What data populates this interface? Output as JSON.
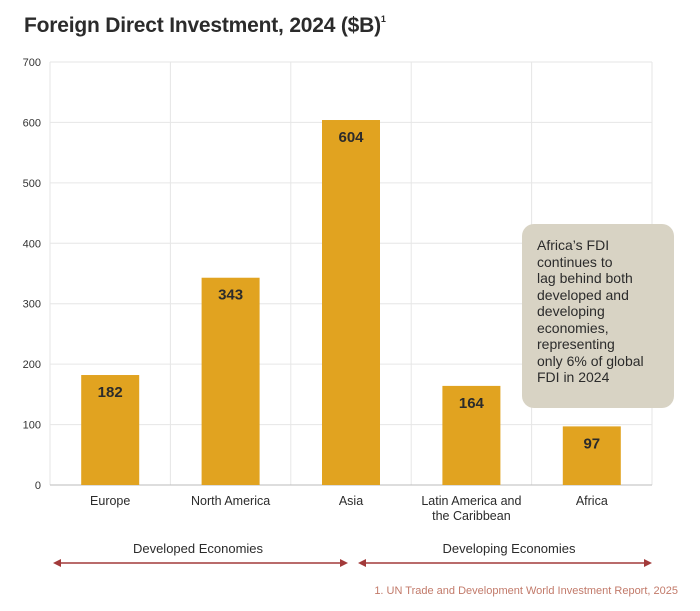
{
  "title": {
    "text": "Foreign Direct Investment, 2024 ($B)",
    "footnote_marker": "1"
  },
  "chart_data": {
    "type": "bar",
    "title": "Foreign Direct Investment, 2024 ($B)",
    "categories": [
      "Europe",
      "North America",
      "Asia",
      "Latin America and the Caribbean",
      "Africa"
    ],
    "category_lines": [
      [
        "Europe"
      ],
      [
        "North America"
      ],
      [
        "Asia"
      ],
      [
        "Latin America and",
        "the Caribbean"
      ],
      [
        "Africa"
      ]
    ],
    "values": [
      182,
      343,
      604,
      164,
      97
    ],
    "data_labels": [
      "182",
      "343",
      "604",
      "164",
      "97"
    ],
    "ylim": [
      0,
      700
    ],
    "yticks": [
      0,
      100,
      200,
      300,
      400,
      500,
      600,
      700
    ],
    "grid": true,
    "bar_color": "#e1a320",
    "xlabel": "",
    "ylabel": ""
  },
  "callout": {
    "text_lines": [
      "Africa’s FDI",
      "continues to",
      "lag behind both",
      "developed and",
      "developing",
      "economies,",
      "representing",
      "only 6% of global",
      "FDI in 2024"
    ],
    "background": "#d8d3c4"
  },
  "groups": [
    {
      "label": "Developed Economies"
    },
    {
      "label": "Developing Economies"
    }
  ],
  "arrow_color": "#a23a3a",
  "footnote": "1. UN Trade and Development World Investment Report, 2025"
}
